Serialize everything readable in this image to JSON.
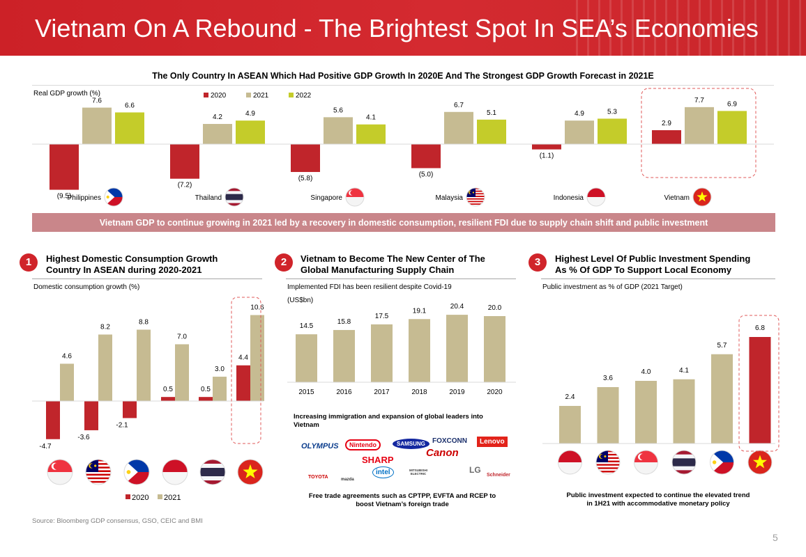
{
  "header": {
    "title": "Vietnam On A Rebound - The Brightest Spot In SEA’s Economies"
  },
  "top_chart_title": "The Only Country In ASEAN Which Had Positive GDP Growth In 2020E And The Strongest GDP Growth Forecast in 2021E",
  "callout": "Vietnam GDP to continue growing in 2021 led by a recovery in domestic consumption, resilient FDI due to supply chain shift and public investment",
  "colors": {
    "red": "#c0252b",
    "tan": "#c6bb92",
    "lime": "#c4cc2a",
    "dashed": "#e05a5a",
    "header_red": "#cc2127"
  },
  "sections": [
    {
      "number": "1",
      "title_line1": "Highest Domestic Consumption Growth",
      "title_line2": "Country In ASEAN during 2020-2021"
    },
    {
      "number": "2",
      "title_line1": "Vietnam to Become The New Center of The",
      "title_line2": "Global Manufacturing Supply Chain"
    },
    {
      "number": "3",
      "title_line1": "Highest Level Of Public Investment Spending",
      "title_line2": "As % Of GDP To Support Local Economy"
    }
  ],
  "fdi_note": {
    "line1": "Increasing immigration and expansion of global leaders into",
    "line2": "Vietnam"
  },
  "brand_logos": [
    "OLYMPUS",
    "Nintendo",
    "SAMSUNG",
    "FOXCONN",
    "Lenovo",
    "SHARP",
    "Canon",
    "TOYOTA",
    "mazda",
    "intel",
    "MITSUBISHI ELECTRIC",
    "LG",
    "Schneider"
  ],
  "fdi_footer": {
    "line1": "Free trade agreements such as CPTPP, EVFTA and RCEP to",
    "line2": "boost Vietnam’s foreign trade"
  },
  "pub_footer": {
    "line1": "Public investment expected to continue the elevated trend",
    "line2": "in 1H21 with accommodative monetary policy"
  },
  "source": "Source: Bloomberg GDP consensus, GSO, CEIC and BMI",
  "page_number": "5",
  "chart_data": [
    {
      "id": "gdp",
      "type": "bar",
      "ylabel": "Real GDP growth (%)",
      "categories": [
        "Philippines",
        "Thailand",
        "Singapore",
        "Malaysia",
        "Indonesia",
        "Vietnam"
      ],
      "series": [
        {
          "name": "2020",
          "values": [
            -9.5,
            -7.2,
            -5.8,
            -5.0,
            -1.1,
            2.9
          ],
          "labels": [
            "(9.5)",
            "(7.2)",
            "(5.8)",
            "(5.0)",
            "(1.1)",
            "2.9"
          ]
        },
        {
          "name": "2021",
          "values": [
            7.6,
            4.2,
            5.6,
            6.7,
            4.9,
            7.7
          ],
          "labels": [
            "7.6",
            "4.2",
            "5.6",
            "6.7",
            "4.9",
            "7.7"
          ]
        },
        {
          "name": "2022",
          "values": [
            6.6,
            4.9,
            4.1,
            5.1,
            5.3,
            6.9
          ],
          "labels": [
            "6.6",
            "4.9",
            "4.1",
            "5.1",
            "5.3",
            "6.9"
          ]
        }
      ],
      "highlight": "Vietnam",
      "legend": "top-center"
    },
    {
      "id": "consumption",
      "type": "bar",
      "ylabel": "Domestic consumption growth (%)",
      "categories": [
        "Singapore",
        "Malaysia",
        "Philippines",
        "Indonesia",
        "Thailand",
        "Vietnam"
      ],
      "series": [
        {
          "name": "2020",
          "values": [
            -4.7,
            -3.6,
            -2.1,
            0.5,
            0.5,
            4.4
          ],
          "labels": [
            "-4.7",
            "-3.6",
            "-2.1",
            "0.5",
            "0.5",
            "4.4"
          ]
        },
        {
          "name": "2021",
          "values": [
            4.6,
            8.2,
            8.8,
            7.0,
            3.0,
            10.6
          ],
          "labels": [
            "4.6",
            "8.2",
            "8.8",
            "7.0",
            "3.0",
            "10.6"
          ]
        }
      ],
      "highlight": "Vietnam",
      "legend": "bottom-center"
    },
    {
      "id": "fdi",
      "type": "bar",
      "ylabel": "Implemented FDI has been resilient despite Covid-19",
      "unit": "(US$bn)",
      "categories": [
        "2015",
        "2016",
        "2017",
        "2018",
        "2019",
        "2020"
      ],
      "values": [
        14.5,
        15.8,
        17.5,
        19.1,
        20.4,
        20.0
      ],
      "labels": [
        "14.5",
        "15.8",
        "17.5",
        "19.1",
        "20.4",
        "20.0"
      ]
    },
    {
      "id": "public",
      "type": "bar",
      "ylabel": "Public investment as % of GDP (2021 Target)",
      "categories": [
        "Indonesia",
        "Malaysia",
        "Singapore",
        "Thailand",
        "Philippines",
        "Vietnam"
      ],
      "values": [
        2.4,
        3.6,
        4.0,
        4.1,
        5.7,
        6.8
      ],
      "labels": [
        "2.4",
        "3.6",
        "4.0",
        "4.1",
        "5.7",
        "6.8"
      ],
      "highlight": "Vietnam"
    }
  ]
}
